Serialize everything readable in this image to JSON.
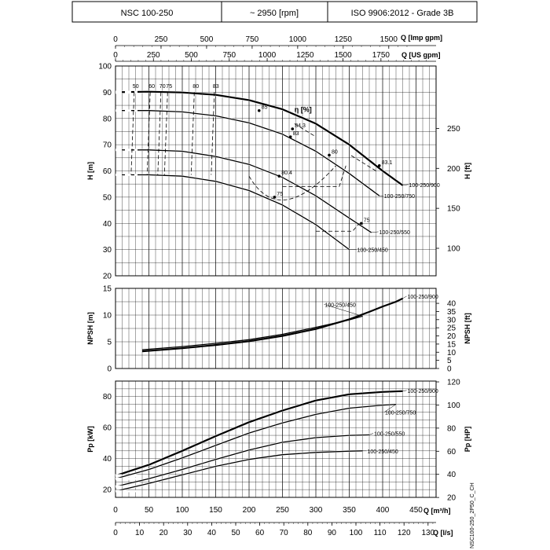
{
  "header": {
    "model": "NSC 100-250",
    "speed": "~ 2950 [rpm]",
    "standard": "ISO 9906:2012 - Grade 3B"
  },
  "side_label": "NSC100-250_2P50_C_CH",
  "chart_data": [
    {
      "type": "line",
      "id": "head",
      "ylabel": "H [m]",
      "y2label": "H [ft]",
      "ylim": [
        20,
        100
      ],
      "yticks": [
        "20",
        "30",
        "40",
        "50",
        "60",
        "70",
        "80",
        "90",
        "100"
      ],
      "y2ticks": [
        "100",
        "150",
        "200",
        "250"
      ],
      "top_axis_imp": {
        "label": "Q [Imp gpm]",
        "ticks": [
          "0",
          "250",
          "500",
          "750",
          "1000",
          "1250",
          "1500"
        ]
      },
      "top_axis_us": {
        "label": "Q [US gpm]",
        "ticks": [
          "0",
          "250",
          "500",
          "750",
          "1000",
          "1250",
          "1500",
          "1750"
        ]
      },
      "xlim": [
        0,
        480
      ],
      "series": [
        {
          "name": "100-250/900",
          "x": [
            0,
            50,
            100,
            150,
            200,
            250,
            300,
            350,
            400,
            430
          ],
          "y": [
            90,
            90.2,
            89.9,
            89,
            87,
            83.5,
            78,
            70,
            60,
            54.5
          ]
        },
        {
          "name": "100-250/750",
          "x": [
            0,
            50,
            100,
            150,
            200,
            250,
            300,
            350,
            395
          ],
          "y": [
            83,
            83,
            82.5,
            81,
            78.3,
            74,
            67.5,
            59,
            50.5
          ]
        },
        {
          "name": "100-250/550",
          "x": [
            0,
            50,
            100,
            150,
            200,
            250,
            300,
            350,
            383
          ],
          "y": [
            68,
            68,
            67.5,
            65.5,
            62.5,
            57.5,
            50.5,
            42,
            36.5
          ]
        },
        {
          "name": "100-250/450",
          "x": [
            0,
            50,
            100,
            150,
            200,
            250,
            300,
            350
          ],
          "y": [
            58.5,
            58.5,
            58,
            56,
            52.5,
            47,
            39.5,
            30
          ]
        }
      ],
      "efficiency_label": "η [%]",
      "efficiency_values": [
        "50",
        "60",
        "70",
        "75",
        "80",
        "83",
        "85",
        "84.3",
        "83",
        "80",
        "83.1",
        "80.4",
        "75"
      ]
    },
    {
      "type": "line",
      "id": "npsh",
      "ylabel": "NPSH [m]",
      "y2label": "NPSH [ft]",
      "ylim": [
        0,
        15
      ],
      "yticks": [
        "0",
        "5",
        "10",
        "15"
      ],
      "y2ticks": [
        "0",
        "5",
        "10",
        "15",
        "20",
        "25",
        "30",
        "35",
        "40"
      ],
      "xlim": [
        0,
        480
      ],
      "series": [
        {
          "name": "100-250/900",
          "x": [
            40,
            100,
            150,
            200,
            250,
            300,
            350,
            380,
            400,
            420,
            430
          ],
          "y": [
            3.2,
            3.8,
            4.4,
            5.1,
            6.1,
            7.4,
            9.2,
            10.6,
            11.6,
            12.5,
            13.1
          ]
        },
        {
          "name": "100-250/450",
          "x": [
            40,
            100,
            150,
            200,
            250,
            300,
            350,
            370
          ],
          "y": [
            3.5,
            4.1,
            4.7,
            5.4,
            6.4,
            7.7,
            9.1,
            9.8
          ]
        }
      ]
    },
    {
      "type": "line",
      "id": "power",
      "ylabel": "Pp [kW]",
      "y2label": "Pp [HP]",
      "ylim": [
        15,
        90
      ],
      "yticks": [
        "20",
        "40",
        "60",
        "80"
      ],
      "y2ticks": [
        "20",
        "40",
        "60",
        "80",
        "100",
        "120"
      ],
      "xlabel": "Q [m³/h]",
      "xticks": [
        "0",
        "50",
        "100",
        "150",
        "200",
        "250",
        "300",
        "350",
        "400",
        "450"
      ],
      "x2label": "Q [l/s]",
      "x2ticks": [
        "0",
        "10",
        "20",
        "30",
        "40",
        "50",
        "60",
        "70",
        "80",
        "90",
        "100",
        "110",
        "120",
        "130"
      ],
      "xlim": [
        0,
        480
      ],
      "series": [
        {
          "name": "100-250/900",
          "x": [
            0,
            50,
            100,
            150,
            200,
            250,
            300,
            350,
            400,
            430
          ],
          "y": [
            29,
            36,
            45,
            54.5,
            63.5,
            71,
            77.5,
            81.5,
            83,
            83.5
          ]
        },
        {
          "name": "100-250/750",
          "x": [
            0,
            50,
            100,
            150,
            200,
            250,
            300,
            350,
            400,
            420
          ],
          "y": [
            27,
            33,
            40.5,
            48.5,
            56.5,
            63,
            68.5,
            72.5,
            74.5,
            75
          ]
        },
        {
          "name": "100-250/550",
          "x": [
            0,
            50,
            100,
            150,
            200,
            250,
            300,
            350,
            380
          ],
          "y": [
            22,
            27,
            33,
            39.5,
            45.5,
            50.5,
            53.5,
            55,
            55.3
          ]
        },
        {
          "name": "100-250/450",
          "x": [
            0,
            50,
            100,
            150,
            200,
            250,
            300,
            350,
            370
          ],
          "y": [
            19,
            24,
            29.5,
            35,
            39.5,
            42.5,
            44,
            44.8,
            45
          ]
        }
      ]
    }
  ]
}
